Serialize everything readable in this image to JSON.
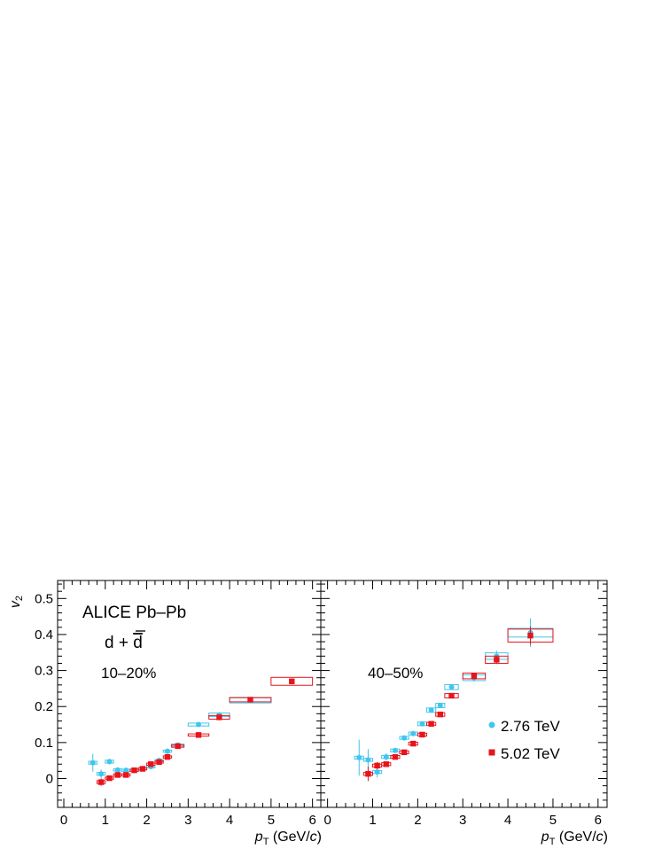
{
  "y_axis_label": "v",
  "y_axis_sub": "2",
  "x_axis_p": "p",
  "x_axis_sub": "T",
  "x_axis_unit_open": " (GeV/",
  "x_axis_unit_c": "c",
  "x_axis_unit_close": ")",
  "experiment": "ALICE Pb–Pb",
  "particle_main": "d + ",
  "particle_bar": "d",
  "legend": [
    {
      "label": "2.76 TeV",
      "color": "#3fc6ee",
      "marker": "circle"
    },
    {
      "label": "5.02 TeV",
      "color": "#e8141b",
      "marker": "square"
    }
  ],
  "chart_data": [
    {
      "type": "scatter",
      "panel": "left",
      "annotation": "10–20%",
      "xlim": [
        -0.15,
        6.2
      ],
      "ylim": [
        -0.08,
        0.55
      ],
      "x_ticks": [
        0,
        1,
        2,
        3,
        4,
        5,
        6
      ],
      "y_ticks": [
        0,
        0.1,
        0.2,
        0.3,
        0.4,
        0.5
      ],
      "y_tick_labels": [
        "0",
        "0.1",
        "0.2",
        "0.3",
        "0.4",
        "0.5"
      ],
      "series": [
        {
          "name": "2.76 TeV",
          "color": "#3fc6ee",
          "marker": "circle",
          "points": [
            {
              "x": 0.7,
              "y": 0.044,
              "ex": 0.1,
              "ey": 0.025,
              "sy": 0.004
            },
            {
              "x": 0.9,
              "y": 0.013,
              "ex": 0.1,
              "ey": 0.012,
              "sy": 0.004
            },
            {
              "x": 1.1,
              "y": 0.047,
              "ex": 0.1,
              "ey": 0.008,
              "sy": 0.004
            },
            {
              "x": 1.3,
              "y": 0.024,
              "ex": 0.1,
              "ey": 0.006,
              "sy": 0.003
            },
            {
              "x": 1.5,
              "y": 0.023,
              "ex": 0.1,
              "ey": 0.005,
              "sy": 0.003
            },
            {
              "x": 1.7,
              "y": 0.023,
              "ex": 0.1,
              "ey": 0.004,
              "sy": 0.003
            },
            {
              "x": 1.9,
              "y": 0.027,
              "ex": 0.1,
              "ey": 0.004,
              "sy": 0.003
            },
            {
              "x": 2.1,
              "y": 0.033,
              "ex": 0.1,
              "ey": 0.004,
              "sy": 0.003
            },
            {
              "x": 2.3,
              "y": 0.05,
              "ex": 0.1,
              "ey": 0.004,
              "sy": 0.003
            },
            {
              "x": 2.5,
              "y": 0.076,
              "ex": 0.1,
              "ey": 0.004,
              "sy": 0.003
            },
            {
              "x": 2.75,
              "y": 0.093,
              "ex": 0.15,
              "ey": 0.004,
              "sy": 0.003
            },
            {
              "x": 3.25,
              "y": 0.15,
              "ex": 0.25,
              "ey": 0.005,
              "sy": 0.004
            },
            {
              "x": 3.75,
              "y": 0.177,
              "ex": 0.25,
              "ey": 0.007,
              "sy": 0.005
            },
            {
              "x": 4.5,
              "y": 0.217,
              "ex": 0.5,
              "ey": 0.008,
              "sy": 0.007
            }
          ]
        },
        {
          "name": "5.02 TeV",
          "color": "#e8141b",
          "marker": "square",
          "points": [
            {
              "x": 0.9,
              "y": -0.01,
              "ex": 0.1,
              "ey": 0.01,
              "sy": 0.004
            },
            {
              "x": 1.1,
              "y": 0.001,
              "ex": 0.1,
              "ey": 0.006,
              "sy": 0.003
            },
            {
              "x": 1.3,
              "y": 0.01,
              "ex": 0.1,
              "ey": 0.005,
              "sy": 0.003
            },
            {
              "x": 1.5,
              "y": 0.01,
              "ex": 0.1,
              "ey": 0.004,
              "sy": 0.003
            },
            {
              "x": 1.7,
              "y": 0.023,
              "ex": 0.1,
              "ey": 0.004,
              "sy": 0.003
            },
            {
              "x": 1.9,
              "y": 0.027,
              "ex": 0.1,
              "ey": 0.004,
              "sy": 0.003
            },
            {
              "x": 2.1,
              "y": 0.04,
              "ex": 0.1,
              "ey": 0.004,
              "sy": 0.003
            },
            {
              "x": 2.3,
              "y": 0.046,
              "ex": 0.1,
              "ey": 0.004,
              "sy": 0.003
            },
            {
              "x": 2.5,
              "y": 0.06,
              "ex": 0.1,
              "ey": 0.004,
              "sy": 0.003
            },
            {
              "x": 2.75,
              "y": 0.09,
              "ex": 0.15,
              "ey": 0.004,
              "sy": 0.003
            },
            {
              "x": 3.25,
              "y": 0.121,
              "ex": 0.25,
              "ey": 0.004,
              "sy": 0.003
            },
            {
              "x": 3.75,
              "y": 0.17,
              "ex": 0.25,
              "ey": 0.005,
              "sy": 0.005
            },
            {
              "x": 4.5,
              "y": 0.219,
              "ex": 0.5,
              "ey": 0.006,
              "sy": 0.006
            },
            {
              "x": 5.5,
              "y": 0.27,
              "ex": 0.5,
              "ey": 0.007,
              "sy": 0.011
            }
          ]
        }
      ]
    },
    {
      "type": "scatter",
      "panel": "right",
      "annotation": "40–50%",
      "xlim": [
        -0.15,
        6.2
      ],
      "ylim": [
        -0.08,
        0.55
      ],
      "x_ticks": [
        0,
        1,
        2,
        3,
        4,
        5,
        6
      ],
      "y_ticks": [
        0,
        0.1,
        0.2,
        0.3,
        0.4,
        0.5
      ],
      "series": [
        {
          "name": "2.76 TeV",
          "color": "#3fc6ee",
          "marker": "circle",
          "points": [
            {
              "x": 0.7,
              "y": 0.058,
              "ex": 0.1,
              "ey": 0.05,
              "sy": 0.004
            },
            {
              "x": 0.9,
              "y": 0.052,
              "ex": 0.1,
              "ey": 0.03,
              "sy": 0.004
            },
            {
              "x": 1.1,
              "y": 0.018,
              "ex": 0.1,
              "ey": 0.015,
              "sy": 0.004
            },
            {
              "x": 1.3,
              "y": 0.06,
              "ex": 0.1,
              "ey": 0.01,
              "sy": 0.004
            },
            {
              "x": 1.5,
              "y": 0.078,
              "ex": 0.1,
              "ey": 0.007,
              "sy": 0.004
            },
            {
              "x": 1.7,
              "y": 0.113,
              "ex": 0.1,
              "ey": 0.006,
              "sy": 0.004
            },
            {
              "x": 1.9,
              "y": 0.125,
              "ex": 0.1,
              "ey": 0.006,
              "sy": 0.004
            },
            {
              "x": 2.1,
              "y": 0.152,
              "ex": 0.1,
              "ey": 0.006,
              "sy": 0.005
            },
            {
              "x": 2.3,
              "y": 0.19,
              "ex": 0.1,
              "ey": 0.007,
              "sy": 0.006
            },
            {
              "x": 2.5,
              "y": 0.203,
              "ex": 0.1,
              "ey": 0.007,
              "sy": 0.006
            },
            {
              "x": 2.75,
              "y": 0.254,
              "ex": 0.15,
              "ey": 0.008,
              "sy": 0.007
            },
            {
              "x": 3.25,
              "y": 0.28,
              "ex": 0.25,
              "ey": 0.01,
              "sy": 0.008
            },
            {
              "x": 3.75,
              "y": 0.34,
              "ex": 0.25,
              "ey": 0.015,
              "sy": 0.009
            },
            {
              "x": 4.5,
              "y": 0.405,
              "ex": 0.5,
              "ey": 0.04,
              "sy": 0.012
            }
          ]
        },
        {
          "name": "5.02 TeV",
          "color": "#e8141b",
          "marker": "square",
          "points": [
            {
              "x": 0.9,
              "y": 0.013,
              "ex": 0.1,
              "ey": 0.02,
              "sy": 0.004
            },
            {
              "x": 1.1,
              "y": 0.036,
              "ex": 0.1,
              "ey": 0.01,
              "sy": 0.004
            },
            {
              "x": 1.3,
              "y": 0.04,
              "ex": 0.1,
              "ey": 0.008,
              "sy": 0.004
            },
            {
              "x": 1.5,
              "y": 0.06,
              "ex": 0.1,
              "ey": 0.006,
              "sy": 0.004
            },
            {
              "x": 1.7,
              "y": 0.073,
              "ex": 0.1,
              "ey": 0.005,
              "sy": 0.004
            },
            {
              "x": 1.9,
              "y": 0.097,
              "ex": 0.1,
              "ey": 0.005,
              "sy": 0.004
            },
            {
              "x": 2.1,
              "y": 0.122,
              "ex": 0.1,
              "ey": 0.005,
              "sy": 0.004
            },
            {
              "x": 2.3,
              "y": 0.152,
              "ex": 0.1,
              "ey": 0.005,
              "sy": 0.004
            },
            {
              "x": 2.5,
              "y": 0.178,
              "ex": 0.1,
              "ey": 0.005,
              "sy": 0.005
            },
            {
              "x": 2.75,
              "y": 0.23,
              "ex": 0.15,
              "ey": 0.006,
              "sy": 0.006
            },
            {
              "x": 3.25,
              "y": 0.285,
              "ex": 0.25,
              "ey": 0.008,
              "sy": 0.008
            },
            {
              "x": 3.75,
              "y": 0.33,
              "ex": 0.25,
              "ey": 0.012,
              "sy": 0.01
            },
            {
              "x": 4.5,
              "y": 0.397,
              "ex": 0.5,
              "ey": 0.025,
              "sy": 0.018
            }
          ]
        }
      ]
    }
  ]
}
